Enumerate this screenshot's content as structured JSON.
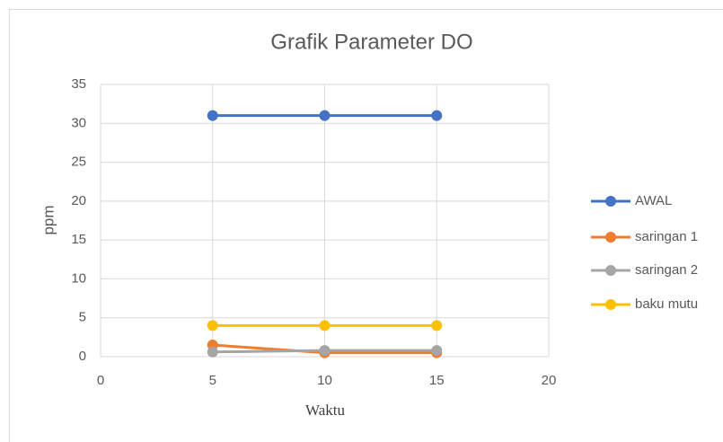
{
  "chart_data": {
    "type": "line",
    "title": "Grafik Parameter DO",
    "x_label": "Waktu",
    "y_label": "ppm",
    "x": [
      5,
      10,
      15
    ],
    "series": [
      {
        "name": "AWAL",
        "color": "#4472c4",
        "values": [
          31,
          31,
          31
        ]
      },
      {
        "name": "saringan 1",
        "color": "#ed7d31",
        "values": [
          1.5,
          0.5,
          0.5
        ]
      },
      {
        "name": "saringan 2",
        "color": "#a5a5a5",
        "values": [
          0.6,
          0.8,
          0.8
        ]
      },
      {
        "name": "baku mutu",
        "color": "#ffc000",
        "values": [
          4,
          4,
          4
        ]
      }
    ],
    "xlim": [
      0,
      20
    ],
    "xticks": [
      0,
      5,
      10,
      15,
      20
    ],
    "ylim": [
      0,
      35
    ],
    "yticks": [
      0,
      5,
      10,
      15,
      20,
      25,
      30,
      35
    ],
    "grid": true,
    "legend": "right"
  }
}
